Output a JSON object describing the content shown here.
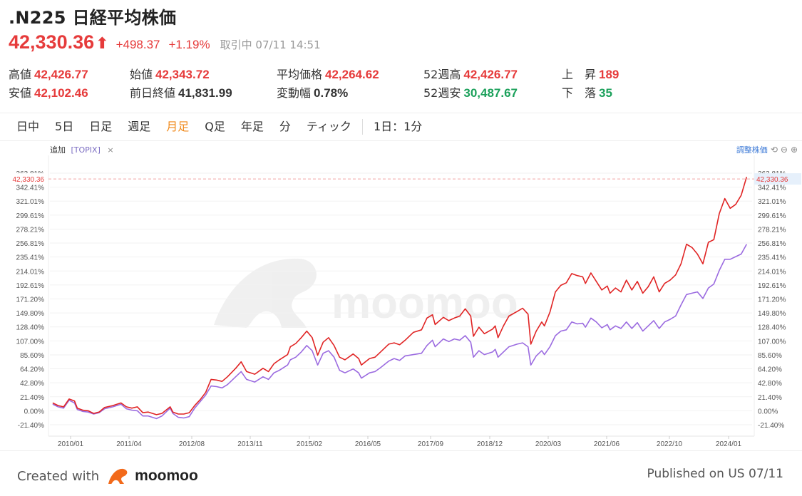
{
  "header": {
    "title": ".N225 日経平均株価",
    "price": "42,330.36",
    "arrow": "⬆",
    "change": "+498.37",
    "change_pct": "+1.19%",
    "status": "取引中 07/11 14:51"
  },
  "stats": {
    "high_label": "高値",
    "high_value": "42,426.77",
    "low_label": "安値",
    "low_value": "42,102.46",
    "open_label": "始値",
    "open_value": "42,343.72",
    "prev_close_label": "前日終値",
    "prev_close_value": "41,831.99",
    "avg_label": "平均価格",
    "avg_value": "42,264.62",
    "range_label": "変動幅",
    "range_value": "0.78%",
    "wk52_high_label": "52週高",
    "wk52_high_value": "42,426.77",
    "wk52_low_label": "52週安",
    "wk52_low_value": "30,487.67",
    "up_label": "上　昇",
    "up_value": "189",
    "down_label": "下　落",
    "down_value": "35"
  },
  "tabs": [
    "日中",
    "5日",
    "日足",
    "週足",
    "月足",
    "Q足",
    "年足",
    "分",
    "ティック",
    "1日：1分"
  ],
  "active_tab": "月足",
  "chart_toolbar": {
    "add_label": "追加",
    "compare_tag": "[TOPIX]",
    "close_glyph": "×",
    "adjust_label": "調整株価",
    "tool_icons": [
      "⟲",
      "⊖",
      "⊕"
    ]
  },
  "footer": {
    "created_label": "Created with",
    "brand": "moomoo",
    "published": "Published on US 07/11"
  },
  "colors": {
    "up": "#e63b3b",
    "down": "#1aa05a",
    "accent": "#f08a1c",
    "series_n225": "#e02424",
    "series_topix": "#9b6be0"
  },
  "chart_data": {
    "type": "line",
    "y_unit": "%",
    "ylim": [
      -21.4,
      363.81
    ],
    "y_ticks": [
      363.81,
      342.41,
      321.01,
      299.61,
      278.21,
      256.81,
      235.41,
      214.01,
      192.61,
      171.2,
      149.8,
      128.4,
      107.0,
      85.6,
      64.2,
      42.8,
      21.4,
      0.0,
      -21.4
    ],
    "y_tick_labels": [
      "363.81%",
      "342.41%",
      "321.01%",
      "299.61%",
      "278.21%",
      "256.81%",
      "235.41%",
      "214.01%",
      "192.61%",
      "171.20%",
      "149.80%",
      "128.40%",
      "107.00%",
      "85.60%",
      "64.20%",
      "42.80%",
      "21.40%",
      "0.00%",
      "-21.40%"
    ],
    "x_tick_labels": [
      "2010/01",
      "2011/04",
      "2012/08",
      "2013/11",
      "2015/02",
      "2016/05",
      "2017/09",
      "2018/12",
      "2020/03",
      "2021/06",
      "2022/10",
      "2024/01"
    ],
    "current_price_label": "42,330.36",
    "current_pct": 355.0,
    "series": [
      {
        "name": "N225",
        "points": [
          [
            2009.667,
            12
          ],
          [
            2009.833,
            8
          ],
          [
            2010.0,
            6
          ],
          [
            2010.167,
            18
          ],
          [
            2010.333,
            15
          ],
          [
            2010.417,
            4
          ],
          [
            2010.583,
            1
          ],
          [
            2010.75,
            0
          ],
          [
            2010.917,
            -4
          ],
          [
            2011.083,
            -2
          ],
          [
            2011.25,
            5
          ],
          [
            2011.5,
            8
          ],
          [
            2011.75,
            12
          ],
          [
            2011.917,
            6
          ],
          [
            2012.083,
            4
          ],
          [
            2012.25,
            6
          ],
          [
            2012.417,
            -3
          ],
          [
            2012.583,
            -2
          ],
          [
            2012.833,
            -6
          ],
          [
            2013.0,
            -4
          ],
          [
            2013.25,
            6
          ],
          [
            2013.333,
            -2
          ],
          [
            2013.5,
            -5
          ],
          [
            2013.667,
            -5
          ],
          [
            2013.833,
            -3
          ],
          [
            2014.0,
            8
          ],
          [
            2014.167,
            17
          ],
          [
            2014.333,
            28
          ],
          [
            2014.5,
            48
          ],
          [
            2014.667,
            47
          ],
          [
            2014.833,
            45
          ],
          [
            2015.0,
            52
          ],
          [
            2015.25,
            65
          ],
          [
            2015.417,
            75
          ],
          [
            2015.583,
            60
          ],
          [
            2015.833,
            56
          ],
          [
            2016.083,
            65
          ],
          [
            2016.25,
            60
          ],
          [
            2016.417,
            72
          ],
          [
            2016.583,
            78
          ],
          [
            2016.833,
            86
          ],
          [
            2016.917,
            98
          ],
          [
            2017.083,
            103
          ],
          [
            2017.25,
            112
          ],
          [
            2017.417,
            122
          ],
          [
            2017.583,
            112
          ],
          [
            2017.75,
            85
          ],
          [
            2017.917,
            105
          ],
          [
            2018.083,
            112
          ],
          [
            2018.25,
            100
          ],
          [
            2018.417,
            82
          ],
          [
            2018.583,
            78
          ],
          [
            2018.833,
            87
          ],
          [
            2019.0,
            80
          ],
          [
            2019.083,
            70
          ],
          [
            2019.333,
            80
          ],
          [
            2019.5,
            82
          ],
          [
            2019.667,
            90
          ],
          [
            2019.917,
            102
          ],
          [
            2020.083,
            104
          ],
          [
            2020.25,
            101
          ],
          [
            2020.417,
            108
          ],
          [
            2020.667,
            120
          ],
          [
            2020.917,
            124
          ],
          [
            2021.083,
            142
          ],
          [
            2021.25,
            147
          ],
          [
            2021.333,
            132
          ],
          [
            2021.583,
            143
          ],
          [
            2021.75,
            138
          ],
          [
            2021.917,
            142
          ],
          [
            2022.083,
            145
          ],
          [
            2022.25,
            156
          ],
          [
            2022.417,
            145
          ],
          [
            2022.5,
            114
          ],
          [
            2022.667,
            128
          ],
          [
            2022.833,
            118
          ],
          [
            2023.083,
            125
          ],
          [
            2023.167,
            130
          ],
          [
            2023.25,
            112
          ],
          [
            2023.417,
            130
          ],
          [
            2023.583,
            145
          ],
          [
            2023.833,
            152
          ],
          [
            2024.0,
            157
          ],
          [
            2024.167,
            148
          ],
          [
            2024.25,
            102
          ],
          [
            2024.417,
            122
          ],
          [
            2024.583,
            136
          ],
          [
            2024.667,
            130
          ],
          [
            2024.833,
            151
          ],
          [
            2025.0,
            182
          ],
          [
            2025.167,
            192
          ],
          [
            2025.333,
            196
          ],
          [
            2025.5,
            210
          ],
          [
            2025.667,
            207
          ],
          [
            2025.833,
            205
          ],
          [
            2025.917,
            195
          ],
          [
            2026.083,
            211
          ],
          [
            2026.25,
            198
          ],
          [
            2026.417,
            185
          ],
          [
            2026.583,
            191
          ],
          [
            2026.667,
            180
          ],
          [
            2026.833,
            188
          ],
          [
            2027.0,
            182
          ],
          [
            2027.167,
            200
          ],
          [
            2027.333,
            185
          ],
          [
            2027.5,
            198
          ],
          [
            2027.667,
            180
          ],
          [
            2027.833,
            190
          ],
          [
            2028.0,
            205
          ],
          [
            2028.167,
            182
          ],
          [
            2028.333,
            195
          ],
          [
            2028.5,
            200
          ],
          [
            2028.667,
            208
          ],
          [
            2028.833,
            225
          ],
          [
            2029.0,
            255
          ],
          [
            2029.167,
            250
          ],
          [
            2029.333,
            240
          ],
          [
            2029.5,
            225
          ],
          [
            2029.667,
            258
          ],
          [
            2029.833,
            262
          ],
          [
            2030.0,
            302
          ],
          [
            2030.167,
            325
          ],
          [
            2030.333,
            310
          ],
          [
            2030.5,
            316
          ],
          [
            2030.667,
            330
          ],
          [
            2030.833,
            358
          ]
        ]
      },
      {
        "name": "TOPIX",
        "points": [
          [
            2009.667,
            10
          ],
          [
            2009.833,
            6
          ],
          [
            2010.0,
            4
          ],
          [
            2010.167,
            16
          ],
          [
            2010.333,
            12
          ],
          [
            2010.417,
            2
          ],
          [
            2010.583,
            -1
          ],
          [
            2010.75,
            -2
          ],
          [
            2010.917,
            -5
          ],
          [
            2011.083,
            -3
          ],
          [
            2011.25,
            3
          ],
          [
            2011.5,
            6
          ],
          [
            2011.75,
            10
          ],
          [
            2011.917,
            3
          ],
          [
            2012.083,
            1
          ],
          [
            2012.25,
            0
          ],
          [
            2012.417,
            -8
          ],
          [
            2012.583,
            -8
          ],
          [
            2012.833,
            -12
          ],
          [
            2013.0,
            -8
          ],
          [
            2013.25,
            4
          ],
          [
            2013.333,
            -4
          ],
          [
            2013.5,
            -10
          ],
          [
            2013.667,
            -11
          ],
          [
            2013.833,
            -9
          ],
          [
            2014.0,
            4
          ],
          [
            2014.167,
            14
          ],
          [
            2014.333,
            24
          ],
          [
            2014.5,
            38
          ],
          [
            2014.667,
            37
          ],
          [
            2014.833,
            35
          ],
          [
            2015.0,
            40
          ],
          [
            2015.25,
            52
          ],
          [
            2015.417,
            60
          ],
          [
            2015.583,
            48
          ],
          [
            2015.833,
            44
          ],
          [
            2016.083,
            52
          ],
          [
            2016.25,
            48
          ],
          [
            2016.417,
            58
          ],
          [
            2016.583,
            62
          ],
          [
            2016.833,
            70
          ],
          [
            2016.917,
            78
          ],
          [
            2017.083,
            82
          ],
          [
            2017.25,
            90
          ],
          [
            2017.417,
            100
          ],
          [
            2017.583,
            92
          ],
          [
            2017.75,
            70
          ],
          [
            2017.917,
            88
          ],
          [
            2018.083,
            92
          ],
          [
            2018.25,
            82
          ],
          [
            2018.417,
            62
          ],
          [
            2018.583,
            58
          ],
          [
            2018.833,
            64
          ],
          [
            2019.0,
            58
          ],
          [
            2019.083,
            50
          ],
          [
            2019.333,
            58
          ],
          [
            2019.5,
            60
          ],
          [
            2019.667,
            66
          ],
          [
            2019.917,
            76
          ],
          [
            2020.083,
            80
          ],
          [
            2020.25,
            77
          ],
          [
            2020.417,
            84
          ],
          [
            2020.667,
            86
          ],
          [
            2020.917,
            88
          ],
          [
            2021.083,
            100
          ],
          [
            2021.25,
            108
          ],
          [
            2021.333,
            98
          ],
          [
            2021.583,
            110
          ],
          [
            2021.75,
            106
          ],
          [
            2021.917,
            110
          ],
          [
            2022.083,
            108
          ],
          [
            2022.25,
            115
          ],
          [
            2022.417,
            105
          ],
          [
            2022.5,
            82
          ],
          [
            2022.667,
            92
          ],
          [
            2022.833,
            86
          ],
          [
            2023.083,
            90
          ],
          [
            2023.167,
            94
          ],
          [
            2023.25,
            82
          ],
          [
            2023.417,
            90
          ],
          [
            2023.583,
            98
          ],
          [
            2023.833,
            102
          ],
          [
            2024.0,
            104
          ],
          [
            2024.167,
            98
          ],
          [
            2024.25,
            70
          ],
          [
            2024.417,
            84
          ],
          [
            2024.583,
            92
          ],
          [
            2024.667,
            86
          ],
          [
            2024.833,
            98
          ],
          [
            2025.0,
            115
          ],
          [
            2025.167,
            122
          ],
          [
            2025.333,
            124
          ],
          [
            2025.5,
            136
          ],
          [
            2025.667,
            133
          ],
          [
            2025.833,
            134
          ],
          [
            2025.917,
            128
          ],
          [
            2026.083,
            142
          ],
          [
            2026.25,
            136
          ],
          [
            2026.417,
            127
          ],
          [
            2026.583,
            132
          ],
          [
            2026.667,
            124
          ],
          [
            2026.833,
            130
          ],
          [
            2027.0,
            126
          ],
          [
            2027.167,
            136
          ],
          [
            2027.333,
            126
          ],
          [
            2027.5,
            135
          ],
          [
            2027.667,
            122
          ],
          [
            2027.833,
            130
          ],
          [
            2028.0,
            138
          ],
          [
            2028.167,
            126
          ],
          [
            2028.333,
            136
          ],
          [
            2028.5,
            140
          ],
          [
            2028.667,
            145
          ],
          [
            2028.833,
            162
          ],
          [
            2029.0,
            178
          ],
          [
            2029.167,
            180
          ],
          [
            2029.333,
            182
          ],
          [
            2029.5,
            172
          ],
          [
            2029.667,
            188
          ],
          [
            2029.833,
            194
          ],
          [
            2030.0,
            215
          ],
          [
            2030.167,
            232
          ],
          [
            2030.333,
            232
          ],
          [
            2030.5,
            236
          ],
          [
            2030.667,
            240
          ],
          [
            2030.833,
            255
          ]
        ]
      }
    ]
  }
}
